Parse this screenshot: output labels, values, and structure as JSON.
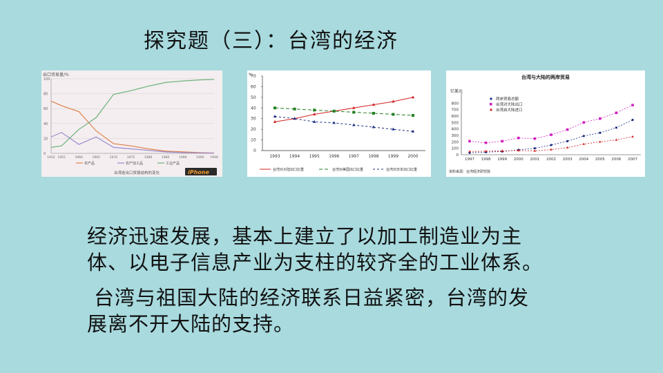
{
  "title": "探究题（三）：台湾的经济",
  "paragraphs": [
    [
      "经济迅速发展，基本上建立了以加工制造业为主",
      "体、以电子信息产业为支柱的较齐全的工业体系。"
    ],
    [
      "台湾与祖国大陆的经济联系日益紧密，台湾的发",
      "展离不开大陆的支持。"
    ]
  ],
  "colors": {
    "background": "#a8dade",
    "agri": "#e0804a",
    "industry_products": "#9a8ad0",
    "industrial": "#6ab27a",
    "red_series": "#d42020",
    "green_series": "#208020",
    "blue_series": "#1a2a80",
    "magenta_series": "#d020c0"
  },
  "chart_data": [
    {
      "type": "line",
      "title": "台湾省出口贸易结构的变化",
      "ylabel": "出口贸易量/%",
      "ylim": [
        0,
        100
      ],
      "yticks": [
        0,
        20,
        40,
        60,
        80,
        100
      ],
      "x": [
        1952,
        1955,
        1960,
        1965,
        1970,
        1975,
        1980,
        1985,
        1990,
        1995,
        1999
      ],
      "series": [
        {
          "name": "农产品",
          "values": [
            70,
            64,
            56,
            30,
            13,
            10,
            6,
            3,
            2,
            1,
            0.5
          ]
        },
        {
          "name": "农产加工品",
          "values": [
            22,
            28,
            12,
            22,
            8,
            6,
            4,
            2,
            1,
            0.5,
            0.3
          ]
        },
        {
          "name": "工业产品",
          "values": [
            8,
            10,
            32,
            48,
            79,
            84,
            90,
            95,
            97,
            98.5,
            99
          ]
        }
      ],
      "logo": "iPhone"
    },
    {
      "type": "line",
      "title": "",
      "ylabel": "%",
      "ylim": [
        0,
        70
      ],
      "yticks": [
        0,
        10,
        20,
        30,
        40,
        50,
        60,
        70
      ],
      "categories": [
        "1993",
        "1994",
        "1995",
        "1996",
        "1997",
        "1998",
        "1999",
        "2000"
      ],
      "series": [
        {
          "name": "台湾对大陆出口比重",
          "values": [
            27,
            30,
            34,
            37,
            40,
            43,
            46,
            50
          ]
        },
        {
          "name": "台湾对美国出口比重",
          "values": [
            40,
            39,
            38,
            37,
            36,
            35,
            34,
            33
          ]
        },
        {
          "name": "台湾对日本出口比重",
          "values": [
            32,
            30,
            27,
            26,
            24,
            22,
            20,
            18
          ]
        }
      ]
    },
    {
      "type": "line",
      "title": "台湾与大陆的两岸贸易",
      "ylabel": "亿美元",
      "ylim": [
        0,
        900
      ],
      "yticks": [
        0,
        100,
        200,
        300,
        400,
        500,
        600,
        700,
        800
      ],
      "categories": [
        "1997",
        "1998",
        "1999",
        "2000",
        "2001",
        "2002",
        "2003",
        "2004",
        "2005",
        "2006",
        "2007"
      ],
      "series": [
        {
          "name": "两岸贸易总额",
          "values": [
            30,
            40,
            50,
            75,
            100,
            150,
            210,
            290,
            340,
            420,
            540
          ]
        },
        {
          "name": "台湾对大陆出口",
          "values": [
            210,
            185,
            210,
            260,
            250,
            310,
            390,
            500,
            560,
            650,
            770
          ]
        },
        {
          "name": "台湾自大陆进口",
          "values": [
            50,
            55,
            60,
            65,
            60,
            80,
            110,
            165,
            200,
            230,
            280
          ]
        }
      ],
      "source": "资料来源：台湾经济研究院"
    }
  ]
}
